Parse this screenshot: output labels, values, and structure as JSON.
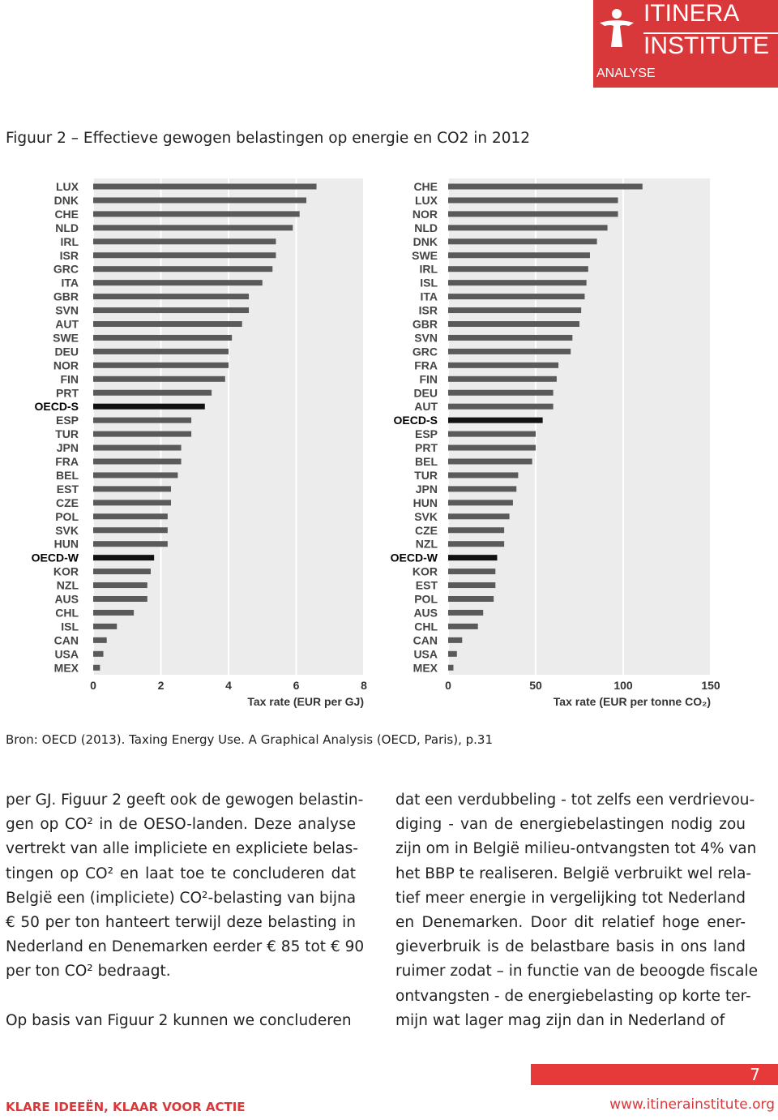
{
  "header": {
    "brand_line1": "ITINERA",
    "brand_line2": "INSTITUTE",
    "label": "ANALYSE"
  },
  "figure_title": "Figuur 2 – Effectieve gewogen belastingen op energie en CO2 in 2012",
  "chart_data": [
    {
      "type": "hbar",
      "xlabel": "Tax rate (EUR per GJ)",
      "categories": [
        "LUX",
        "DNK",
        "CHE",
        "NLD",
        "IRL",
        "ISR",
        "GRC",
        "ITA",
        "GBR",
        "SVN",
        "AUT",
        "SWE",
        "DEU",
        "NOR",
        "FIN",
        "PRT",
        "OECD-S",
        "ESP",
        "TUR",
        "JPN",
        "FRA",
        "BEL",
        "EST",
        "CZE",
        "POL",
        "SVK",
        "HUN",
        "OECD-W",
        "KOR",
        "NZL",
        "AUS",
        "CHL",
        "ISL",
        "CAN",
        "USA",
        "MEX"
      ],
      "values": [
        6.6,
        6.3,
        6.1,
        5.9,
        5.4,
        5.4,
        5.3,
        5.0,
        4.6,
        4.6,
        4.4,
        4.1,
        4.0,
        4.0,
        3.9,
        3.5,
        3.3,
        2.9,
        2.9,
        2.6,
        2.6,
        2.5,
        2.3,
        2.3,
        2.2,
        2.2,
        2.2,
        1.8,
        1.7,
        1.6,
        1.6,
        1.2,
        0.7,
        0.4,
        0.3,
        0.2
      ],
      "colors": [
        "#5a5a5a",
        "#5a5a5a",
        "#5a5a5a",
        "#5a5a5a",
        "#5a5a5a",
        "#5a5a5a",
        "#5a5a5a",
        "#5a5a5a",
        "#5a5a5a",
        "#5a5a5a",
        "#5a5a5a",
        "#5a5a5a",
        "#5a5a5a",
        "#5a5a5a",
        "#5a5a5a",
        "#5a5a5a",
        "#111111",
        "#5a5a5a",
        "#5a5a5a",
        "#5a5a5a",
        "#5a5a5a",
        "#5a5a5a",
        "#5a5a5a",
        "#5a5a5a",
        "#5a5a5a",
        "#5a5a5a",
        "#5a5a5a",
        "#111111",
        "#5a5a5a",
        "#5a5a5a",
        "#5a5a5a",
        "#5a5a5a",
        "#5a5a5a",
        "#5a5a5a",
        "#5a5a5a",
        "#5a5a5a"
      ],
      "xlim": [
        0,
        8
      ],
      "xticks": [
        0,
        2,
        4,
        6,
        8
      ],
      "grid": true
    },
    {
      "type": "hbar",
      "xlabel": "Tax rate (EUR per tonne CO₂)",
      "categories": [
        "CHE",
        "LUX",
        "NOR",
        "NLD",
        "DNK",
        "SWE",
        "IRL",
        "ISL",
        "ITA",
        "ISR",
        "GBR",
        "SVN",
        "GRC",
        "FRA",
        "FIN",
        "DEU",
        "AUT",
        "OECD-S",
        "ESP",
        "PRT",
        "BEL",
        "TUR",
        "JPN",
        "HUN",
        "SVK",
        "CZE",
        "NZL",
        "OECD-W",
        "KOR",
        "EST",
        "POL",
        "AUS",
        "CHL",
        "CAN",
        "USA",
        "MEX"
      ],
      "values": [
        111,
        97,
        97,
        91,
        85,
        81,
        80,
        79,
        78,
        76,
        75,
        71,
        70,
        63,
        62,
        60,
        60,
        54,
        50,
        50,
        48,
        40,
        39,
        37,
        35,
        32,
        32,
        28,
        27,
        27,
        26,
        20,
        17,
        8,
        5,
        3
      ],
      "colors": [
        "#5a5a5a",
        "#5a5a5a",
        "#5a5a5a",
        "#5a5a5a",
        "#5a5a5a",
        "#5a5a5a",
        "#5a5a5a",
        "#5a5a5a",
        "#5a5a5a",
        "#5a5a5a",
        "#5a5a5a",
        "#5a5a5a",
        "#5a5a5a",
        "#5a5a5a",
        "#5a5a5a",
        "#5a5a5a",
        "#5a5a5a",
        "#111111",
        "#5a5a5a",
        "#5a5a5a",
        "#5a5a5a",
        "#5a5a5a",
        "#5a5a5a",
        "#5a5a5a",
        "#5a5a5a",
        "#5a5a5a",
        "#5a5a5a",
        "#111111",
        "#5a5a5a",
        "#5a5a5a",
        "#5a5a5a",
        "#5a5a5a",
        "#5a5a5a",
        "#5a5a5a",
        "#5a5a5a",
        "#5a5a5a"
      ],
      "xlim": [
        0,
        150
      ],
      "xticks": [
        0,
        50,
        100,
        150
      ],
      "grid": true
    }
  ],
  "source": "Bron:  OECD (2013). Taxing Energy Use. A Graphical Analysis (OECD, Paris), p.31",
  "columns": [
    [
      {
        "lines": [
          "per GJ. Figuur 2 geeft ook de gewogen belastin-",
          "gen op CO² in de OESO-landen. Deze analyse",
          "vertrekt van alle impliciete en expliciete belas-",
          "tingen op CO² en laat toe te concluderen dat",
          "België een (impliciete) CO²-belasting van bijna",
          "€ 50 per ton hanteert terwijl deze belasting in",
          "Nederland en Denemarken eerder € 85 tot € 90",
          "per ton CO² bedraagt."
        ]
      },
      {
        "lines": [
          "Op basis van Figuur 2 kunnen we concluderen"
        ]
      }
    ],
    [
      {
        "lines": [
          "dat een verdubbeling  - tot zelfs een verdrievou-",
          "diging - van de energiebelastingen nodig zou",
          "zijn om in België milieu-ontvangsten tot 4% van",
          "het BBP te realiseren. België verbruikt wel rela-",
          "tief meer energie in vergelijking tot Nederland",
          "en Denemarken. Door dit relatief hoge ener-",
          "gieverbruik is de belastbare basis in ons land",
          "ruimer zodat – in functie van de beoogde fiscale",
          "ontvangsten - de energiebelasting op korte ter-",
          "mijn wat lager mag zijn dan in Nederland of"
        ]
      }
    ]
  ],
  "footer": {
    "page_number": "7",
    "slogan": "KLARE IDEEËN, KLAAR VOOR ACTIE",
    "url": "www.itinerainstitute.org"
  }
}
